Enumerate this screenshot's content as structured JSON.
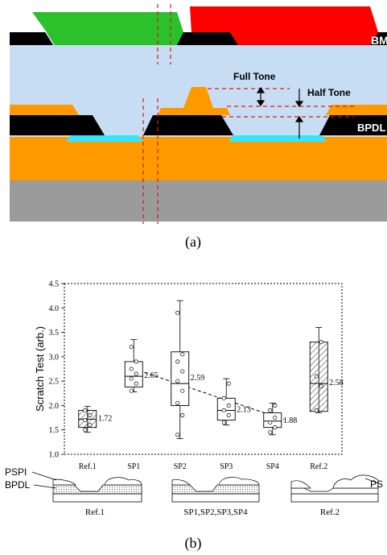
{
  "colors": {
    "light_blue": "#c7ddf4",
    "black": "#000000",
    "green": "#2bc12b",
    "red": "#ff0000",
    "orange": "#ff9900",
    "cyan": "#33e6ff",
    "gray": "#9b9b9b",
    "dashed_red": "#d81b1b",
    "hatch": "#555555"
  },
  "panel_a": {
    "labels": {
      "bm": "BM",
      "full_tone": "Full Tone",
      "half_tone": "Half Tone",
      "bpdl": "BPDL"
    },
    "caption": "(a)"
  },
  "panel_b": {
    "ylabel": "Scratch Test (arb.)",
    "caption": "(b)",
    "legend_labels": {
      "pspi": "PSPI",
      "bpdl": "BPDL",
      "ps": "PS"
    },
    "diagram_labels": {
      "ref1": "Ref.1",
      "sp_group": "SP1,SP2,SP3,SP4",
      "ref2": "Ref.2"
    }
  },
  "chart_data": {
    "type": "box",
    "categories": [
      "Ref.1",
      "SP1",
      "SP2",
      "SP3",
      "SP4",
      "Ref.2"
    ],
    "ylim": [
      1.0,
      4.5
    ],
    "yticks": [
      "1.0",
      "1.5",
      "2.0",
      "2.5",
      "3.0",
      "3.5",
      "4.0",
      "4.5"
    ],
    "boxes": [
      {
        "category": "Ref.1",
        "min": 1.45,
        "q1": 1.55,
        "median": 1.72,
        "q3": 1.9,
        "max": 1.98,
        "label": "1.72",
        "hatched": true
      },
      {
        "category": "SP1",
        "min": 2.28,
        "q1": 2.38,
        "median": 2.6,
        "q3": 2.9,
        "max": 3.35,
        "label": "2.65",
        "hatched": false
      },
      {
        "category": "SP2",
        "min": 1.32,
        "q1": 2.0,
        "median": 2.45,
        "q3": 3.1,
        "max": 4.15,
        "label": "2.59",
        "hatched": false
      },
      {
        "category": "SP3",
        "min": 1.6,
        "q1": 1.7,
        "median": 1.9,
        "q3": 2.15,
        "max": 2.55,
        "label": "2.13",
        "hatched": false
      },
      {
        "category": "SP4",
        "min": 1.4,
        "q1": 1.55,
        "median": 1.68,
        "q3": 1.85,
        "max": 2.05,
        "label": "1.88",
        "hatched": false
      },
      {
        "category": "Ref.2",
        "min": 1.85,
        "q1": 1.88,
        "median": 2.45,
        "q3": 3.3,
        "max": 3.6,
        "label": "2.58",
        "hatched": true
      }
    ],
    "points": {
      "Ref.1": [
        1.5,
        1.6,
        1.7,
        1.8,
        1.9
      ],
      "SP1": [
        2.3,
        2.45,
        2.55,
        2.65,
        2.75,
        2.9,
        3.2
      ],
      "SP2": [
        1.4,
        1.8,
        2.05,
        2.3,
        2.5,
        2.7,
        2.9,
        3.05,
        3.9
      ],
      "SP3": [
        1.65,
        1.8,
        1.9,
        2.0,
        2.15,
        2.45
      ],
      "SP4": [
        1.45,
        1.55,
        1.65,
        1.75,
        1.9,
        2.0
      ],
      "Ref.2": [
        1.9,
        2.4,
        2.6,
        3.3
      ]
    },
    "trend_line": {
      "from": "SP1",
      "to": "SP4",
      "from_value": 2.75,
      "to_value": 1.65
    }
  }
}
